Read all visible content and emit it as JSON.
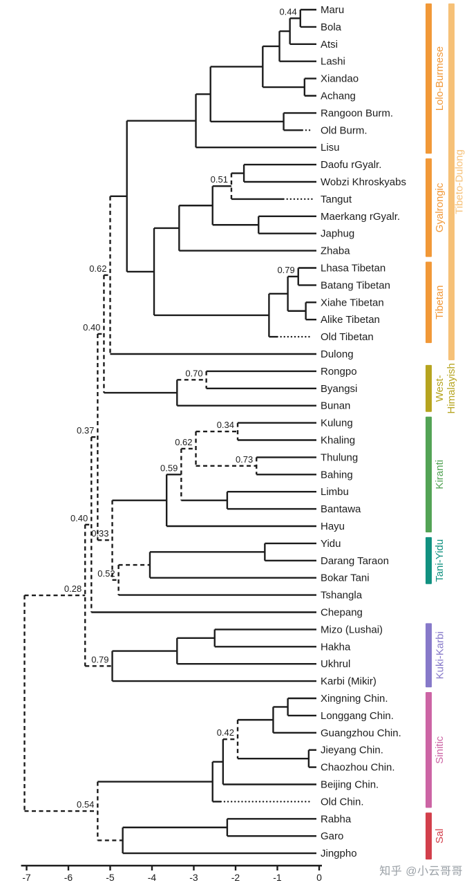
{
  "watermark": {
    "text": "知乎 @小云哥哥"
  },
  "chart_data": {
    "type": "phylogenetic-tree-dendrogram",
    "title": "",
    "x_axis": {
      "label": "",
      "ticks": [
        -7,
        -6,
        -5,
        -4,
        -3,
        -2,
        -1,
        0
      ]
    },
    "line_color": "#1c1c1c",
    "extinct_dotted_tips": [
      "Old Burm.",
      "Tangut",
      "Old Tibetan",
      "Old Chin."
    ],
    "groups": [
      {
        "label": "Lolo-Burmese",
        "label_lines": [
          "Lolo-Burmese"
        ],
        "color": "#F19837",
        "from": 1,
        "to": 9,
        "column": 1
      },
      {
        "label": "Gyalrongic",
        "label_lines": [
          "Gyalrongic"
        ],
        "color": "#F19837",
        "from": 10,
        "to": 15,
        "column": 1
      },
      {
        "label": "Tibetan",
        "label_lines": [
          "Tibetan"
        ],
        "color": "#F19837",
        "from": 16,
        "to": 20,
        "column": 1
      },
      {
        "label": "Tibeto-Dulong",
        "label_lines": [
          "Tibeto-Dulong"
        ],
        "color": "#F6C178",
        "from": 1,
        "to": 21,
        "column": 2
      },
      {
        "label": "West-Himalayish",
        "label_lines": [
          "West-",
          "Himalayish"
        ],
        "color": "#B6A41F",
        "from": 22,
        "to": 24,
        "column": 1
      },
      {
        "label": "Kiranti",
        "label_lines": [
          "Kiranti"
        ],
        "color": "#53A355",
        "from": 25,
        "to": 31,
        "column": 1
      },
      {
        "label": "Tani-Yidu",
        "label_lines": [
          "Tani-Yidu"
        ],
        "color": "#119180",
        "from": 32,
        "to": 34,
        "column": 1
      },
      {
        "label": "Kuki-Karbi",
        "label_lines": [
          "Kuki-Karbi"
        ],
        "color": "#8679C9",
        "from": 37,
        "to": 40,
        "column": 1
      },
      {
        "label": "Sinitic",
        "label_lines": [
          "Sinitic"
        ],
        "color": "#CC64A4",
        "from": 41,
        "to": 47,
        "column": 1
      },
      {
        "label": "Sal",
        "label_lines": [
          "Sal"
        ],
        "color": "#D23F4B",
        "from": 48,
        "to": 50,
        "column": 1
      }
    ],
    "tree": {
      "t": -7.05,
      "dv": 1,
      "c": [
        {
          "t": -5.6,
          "s": "0.28",
          "din": 1,
          "dv": 1,
          "c": [
            {
              "t": -5.45,
              "s": "0.40",
              "din": 1,
              "dv": 1,
              "c": [
                {
                  "t": -5.3,
                  "s": "0.37",
                  "din": 1,
                  "dv": 1,
                  "c": [
                    {
                      "t": -5.15,
                      "s": "0.40",
                      "din": 1,
                      "dv": 1,
                      "c": [
                        {
                          "t": -5.0,
                          "s": "0.62",
                          "din": 1,
                          "dv": 1,
                          "c": [
                            {
                              "t": -4.6,
                              "c": [
                                {
                                  "t": -2.95,
                                  "c": [
                                    {
                                      "t": -2.6,
                                      "c": [
                                        {
                                          "t": -1.35,
                                          "c": [
                                            {
                                              "t": -0.95,
                                              "c": [
                                                {
                                                  "t": -0.7,
                                                  "c": [
                                                    {
                                                      "t": -0.45,
                                                      "s": "0.44",
                                                      "c": [
                                                        {
                                                          "n": "Maru"
                                                        },
                                                        {
                                                          "n": "Bola"
                                                        }
                                                      ]
                                                    },
                                                    {
                                                      "n": "Atsi"
                                                    }
                                                  ]
                                                },
                                                {
                                                  "n": "Lashi"
                                                }
                                              ]
                                            },
                                            {
                                              "t": -0.35,
                                              "c": [
                                                {
                                                  "n": "Xiandao"
                                                },
                                                {
                                                  "n": "Achang"
                                                }
                                              ]
                                            }
                                          ]
                                        },
                                        {
                                          "t": -0.85,
                                          "c": [
                                            {
                                              "n": "Rangoon Burm."
                                            },
                                            {
                                              "n": "Old Burm.",
                                              "df": -0.4
                                            }
                                          ]
                                        }
                                      ]
                                    },
                                    {
                                      "n": "Lisu"
                                    }
                                  ]
                                },
                                {
                                  "t": -3.95,
                                  "c": [
                                    {
                                      "t": -3.35,
                                      "c": [
                                        {
                                          "t": -2.55,
                                          "c": [
                                            {
                                              "t": -2.1,
                                              "s": "0.51",
                                              "dv": 1,
                                              "c": [
                                                {
                                                  "t": -1.8,
                                                  "c": [
                                                    {
                                                      "n": "Daofu rGyalr."
                                                    },
                                                    {
                                                      "n": "Wobzi Khroskyabs"
                                                    }
                                                  ]
                                                },
                                                {
                                                  "n": "Tangut",
                                                  "df": -0.85
                                                }
                                              ]
                                            },
                                            {
                                              "t": -1.45,
                                              "c": [
                                                {
                                                  "n": "Maerkang rGyalr."
                                                },
                                                {
                                                  "n": "Japhug"
                                                }
                                              ]
                                            }
                                          ]
                                        },
                                        {
                                          "n": "Zhaba"
                                        }
                                      ]
                                    },
                                    {
                                      "t": -1.2,
                                      "c": [
                                        {
                                          "t": -0.75,
                                          "c": [
                                            {
                                              "t": -0.5,
                                              "s": "0.79",
                                              "c": [
                                                {
                                                  "n": "Lhasa Tibetan"
                                                },
                                                {
                                                  "n": "Batang Tibetan"
                                                }
                                              ]
                                            },
                                            {
                                              "t": -0.32,
                                              "c": [
                                                {
                                                  "n": "Xiahe Tibetan"
                                                },
                                                {
                                                  "n": "Alike Tibetan"
                                                }
                                              ]
                                            }
                                          ]
                                        },
                                        {
                                          "n": "Old Tibetan",
                                          "df": -1.0
                                        }
                                      ]
                                    }
                                  ]
                                }
                              ]
                            },
                            {
                              "n": "Dulong"
                            }
                          ]
                        },
                        {
                          "t": -3.4,
                          "c": [
                            {
                              "t": -2.7,
                              "s": "0.70",
                              "din": 1,
                              "dv": 1,
                              "c": [
                                {
                                  "n": "Rongpo"
                                },
                                {
                                  "n": "Byangsi"
                                }
                              ]
                            },
                            {
                              "n": "Bunan"
                            }
                          ]
                        }
                      ]
                    },
                    {
                      "t": -4.95,
                      "s": "0.33",
                      "din": 1,
                      "dv": 1,
                      "c": [
                        {
                          "t": -3.65,
                          "c": [
                            {
                              "t": -3.3,
                              "s": "0.59",
                              "dv": 1,
                              "c": [
                                {
                                  "t": -2.95,
                                  "s": "0.62",
                                  "din": 1,
                                  "dv": 1,
                                  "c": [
                                    {
                                      "t": -1.95,
                                      "s": "0.34",
                                      "din": 1,
                                      "dv": 1,
                                      "c": [
                                        {
                                          "n": "Kulung"
                                        },
                                        {
                                          "n": "Khaling"
                                        }
                                      ]
                                    },
                                    {
                                      "t": -1.5,
                                      "s": "0.73",
                                      "din": 1,
                                      "dv": 1,
                                      "c": [
                                        {
                                          "n": "Thulung"
                                        },
                                        {
                                          "n": "Bahing"
                                        }
                                      ]
                                    }
                                  ]
                                },
                                {
                                  "t": -2.2,
                                  "c": [
                                    {
                                      "n": "Limbu"
                                    },
                                    {
                                      "n": "Bantawa"
                                    }
                                  ]
                                }
                              ]
                            },
                            {
                              "n": "Hayu"
                            }
                          ]
                        },
                        {
                          "t": -4.8,
                          "s": "0.52",
                          "din": 1,
                          "dv": 1,
                          "c": [
                            {
                              "t": -4.05,
                              "din": 1,
                              "c": [
                                {
                                  "t": -1.3,
                                  "c": [
                                    {
                                      "n": "Yidu"
                                    },
                                    {
                                      "n": "Darang Taraon"
                                    }
                                  ]
                                },
                                {
                                  "n": "Bokar Tani"
                                }
                              ]
                            },
                            {
                              "n": "Tshangla"
                            }
                          ]
                        }
                      ]
                    }
                  ]
                },
                {
                  "n": "Chepang"
                }
              ]
            },
            {
              "t": -4.95,
              "s": "0.79",
              "din": 1,
              "c": [
                {
                  "t": -3.4,
                  "c": [
                    {
                      "t": -2.5,
                      "c": [
                        {
                          "n": "Mizo (Lushai)"
                        },
                        {
                          "n": "Hakha"
                        }
                      ]
                    },
                    {
                      "n": "Ukhrul"
                    }
                  ]
                },
                {
                  "n": "Karbi (Mikir)"
                }
              ]
            }
          ]
        },
        {
          "t": -5.3,
          "s": "0.54",
          "din": 1,
          "dv": 1,
          "c": [
            {
              "t": -2.55,
              "c": [
                {
                  "t": -2.3,
                  "c": [
                    {
                      "t": -1.95,
                      "s": "0.42",
                      "din": 1,
                      "dv": 1,
                      "c": [
                        {
                          "t": -1.1,
                          "c": [
                            {
                              "t": -0.75,
                              "c": [
                                {
                                  "n": "Xingning Chin."
                                },
                                {
                                  "n": "Longgang Chin."
                                }
                              ]
                            },
                            {
                              "n": "Guangzhou Chin."
                            }
                          ]
                        },
                        {
                          "t": -0.25,
                          "c": [
                            {
                              "n": "Jieyang Chin."
                            },
                            {
                              "n": "Chaozhou Chin."
                            }
                          ]
                        }
                      ]
                    },
                    {
                      "n": "Beijing Chin."
                    }
                  ]
                },
                {
                  "n": "Old Chin.",
                  "df": -2.35
                }
              ]
            },
            {
              "t": -4.7,
              "din": 1,
              "c": [
                {
                  "t": -2.2,
                  "c": [
                    {
                      "n": "Rabha"
                    },
                    {
                      "n": "Garo"
                    }
                  ]
                },
                {
                  "n": "Jingpho"
                }
              ]
            }
          ]
        }
      ]
    }
  }
}
